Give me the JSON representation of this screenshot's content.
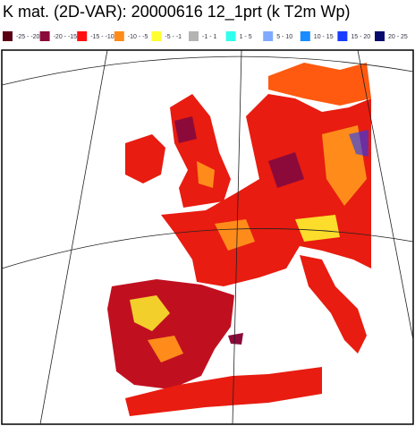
{
  "title": "K mat. (2D-VAR): 20000616 12_1prt (k T2m Wp)",
  "legend": [
    {
      "label": "-25 - -20",
      "color": "#5a0012"
    },
    {
      "label": "-20 - -15",
      "color": "#8c0a3a"
    },
    {
      "label": "-15 - -10",
      "color": "#ff1010"
    },
    {
      "label": "-10 - -5",
      "color": "#ff8c1a"
    },
    {
      "label": "-5 - -1",
      "color": "#ffff30"
    },
    {
      "label": "-1 - 1",
      "color": "#b4b4b4"
    },
    {
      "label": "1 - 5",
      "color": "#30ffee"
    },
    {
      "label": "5 - 10",
      "color": "#80aaff"
    },
    {
      "label": "10 - 15",
      "color": "#1a8cff"
    },
    {
      "label": "15 - 20",
      "color": "#1a3cff"
    },
    {
      "label": "20 - 25",
      "color": "#0a0a6e"
    }
  ]
}
